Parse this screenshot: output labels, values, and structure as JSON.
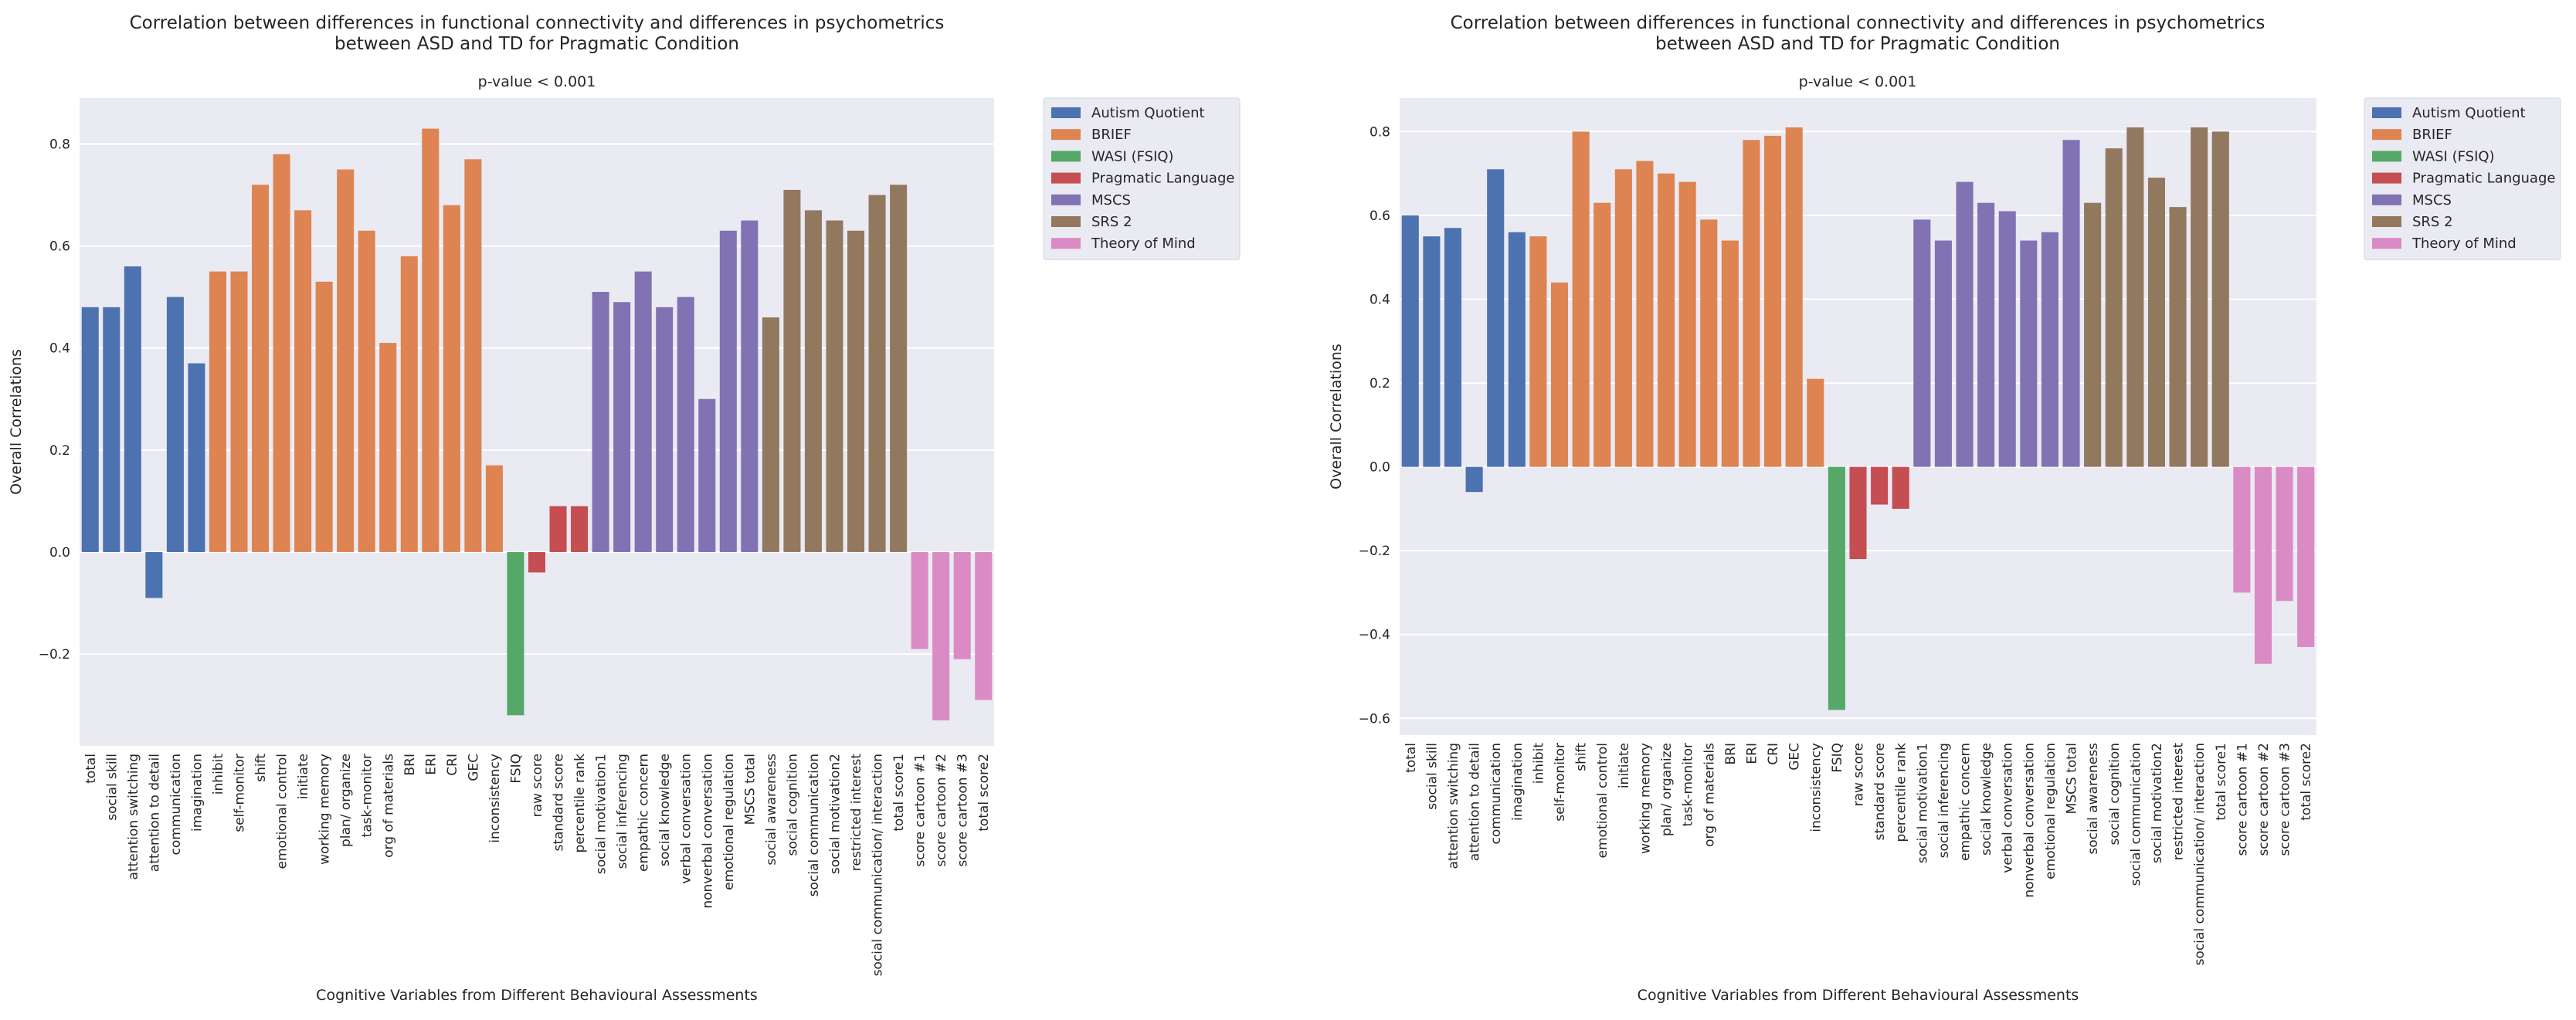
{
  "chart_data": [
    {
      "type": "bar",
      "title": "Correlation between differences in functional connectivity and differences in psychometrics\nbetween ASD and TD for Pragmatic Condition",
      "subtitle": "p-value < 0.001",
      "xlabel": "Cognitive Variables from Different Behavioural Assessments",
      "ylabel": "Overall Correlations",
      "ylim": [
        -0.38,
        0.89
      ],
      "yticks": [
        -0.2,
        0.0,
        0.2,
        0.4,
        0.6,
        0.8
      ],
      "ytick_labels": [
        "−0.2",
        "0.0",
        "0.2",
        "0.4",
        "0.6",
        "0.8"
      ],
      "grid": true,
      "legend_position": "outside-top-right",
      "groups": [
        {
          "name": "Autism Quotient",
          "color": "#4C72B0"
        },
        {
          "name": "BRIEF",
          "color": "#DD8452"
        },
        {
          "name": "WASI (FSIQ)",
          "color": "#55A868"
        },
        {
          "name": "Pragmatic Language",
          "color": "#C44E52"
        },
        {
          "name": "MSCS",
          "color": "#8172B3"
        },
        {
          "name": "SRS 2",
          "color": "#937860"
        },
        {
          "name": "Theory of Mind",
          "color": "#DA8BC3"
        }
      ],
      "categories": [
        "total",
        "social skill",
        "attention switching",
        "attention to detail",
        "communication",
        "imagination",
        "inhibit",
        "self-monitor",
        "shift",
        "emotional control",
        "initiate",
        "working memory",
        "plan/ organize",
        "task-monitor",
        "org of materials",
        "BRI",
        "ERI",
        "CRI",
        "GEC",
        "inconsistency",
        "FSIQ",
        "raw score",
        "standard score",
        "percentile rank",
        "social motivation1",
        "social inferencing",
        "empathic concern",
        "social knowledge",
        "verbal conversation",
        "nonverbal conversation",
        "emotional regulation",
        "MSCS total",
        "social awareness",
        "social cognition",
        "social communication",
        "social motivation2",
        "restricted interest",
        "social communication/ interaction",
        "total score1",
        "score cartoon #1",
        "score cartoon #2",
        "score cartoon #3",
        "total score2"
      ],
      "category_groups": [
        0,
        0,
        0,
        0,
        0,
        0,
        1,
        1,
        1,
        1,
        1,
        1,
        1,
        1,
        1,
        1,
        1,
        1,
        1,
        1,
        2,
        3,
        3,
        3,
        4,
        4,
        4,
        4,
        4,
        4,
        4,
        4,
        5,
        5,
        5,
        5,
        5,
        5,
        5,
        6,
        6,
        6,
        6
      ],
      "values": [
        0.48,
        0.48,
        0.56,
        -0.09,
        0.5,
        0.37,
        0.55,
        0.55,
        0.72,
        0.78,
        0.67,
        0.53,
        0.75,
        0.63,
        0.41,
        0.58,
        0.83,
        0.68,
        0.77,
        0.17,
        -0.32,
        -0.04,
        0.09,
        0.09,
        0.51,
        0.49,
        0.55,
        0.48,
        0.5,
        0.3,
        0.63,
        0.65,
        0.46,
        0.71,
        0.67,
        0.65,
        0.63,
        0.7,
        0.72,
        -0.19,
        -0.33,
        -0.21,
        -0.29
      ]
    },
    {
      "type": "bar",
      "title": "Correlation between differences in functional connectivity and differences in psychometrics\nbetween ASD and TD for Pragmatic Condition",
      "subtitle": "p-value < 0.001",
      "xlabel": "Cognitive Variables from Different Behavioural Assessments",
      "ylabel": "Overall Correlations",
      "ylim": [
        -0.64,
        0.88
      ],
      "yticks": [
        -0.6,
        -0.4,
        -0.2,
        0.0,
        0.2,
        0.4,
        0.6,
        0.8
      ],
      "ytick_labels": [
        "−0.6",
        "−0.4",
        "−0.2",
        "0.0",
        "0.2",
        "0.4",
        "0.6",
        "0.8"
      ],
      "grid": true,
      "legend_position": "outside-top-right",
      "groups": [
        {
          "name": "Autism Quotient",
          "color": "#4C72B0"
        },
        {
          "name": "BRIEF",
          "color": "#DD8452"
        },
        {
          "name": "WASI (FSIQ)",
          "color": "#55A868"
        },
        {
          "name": "Pragmatic Language",
          "color": "#C44E52"
        },
        {
          "name": "MSCS",
          "color": "#8172B3"
        },
        {
          "name": "SRS 2",
          "color": "#937860"
        },
        {
          "name": "Theory of Mind",
          "color": "#DA8BC3"
        }
      ],
      "categories": [
        "total",
        "social skill",
        "attention switching",
        "attention to detail",
        "communication",
        "imagination",
        "inhibit",
        "self-monitor",
        "shift",
        "emotional control",
        "initiate",
        "working memory",
        "plan/ organize",
        "task-monitor",
        "org of materials",
        "BRI",
        "ERI",
        "CRI",
        "GEC",
        "inconsistency",
        "FSIQ",
        "raw score",
        "standard score",
        "percentile rank",
        "social motivation1",
        "social inferencing",
        "empathic concern",
        "social knowledge",
        "verbal conversation",
        "nonverbal conversation",
        "emotional regulation",
        "MSCS total",
        "social awareness",
        "social cognition",
        "social communication",
        "social motivation2",
        "restricted interest",
        "social communication/ interaction",
        "total score1",
        "score cartoon #1",
        "score cartoon #2",
        "score cartoon #3",
        "total score2"
      ],
      "category_groups": [
        0,
        0,
        0,
        0,
        0,
        0,
        1,
        1,
        1,
        1,
        1,
        1,
        1,
        1,
        1,
        1,
        1,
        1,
        1,
        1,
        2,
        3,
        3,
        3,
        4,
        4,
        4,
        4,
        4,
        4,
        4,
        4,
        5,
        5,
        5,
        5,
        5,
        5,
        5,
        6,
        6,
        6,
        6
      ],
      "values": [
        0.6,
        0.55,
        0.57,
        -0.06,
        0.71,
        0.56,
        0.55,
        0.44,
        0.8,
        0.63,
        0.71,
        0.73,
        0.7,
        0.68,
        0.59,
        0.54,
        0.78,
        0.79,
        0.81,
        0.21,
        -0.58,
        -0.22,
        -0.09,
        -0.1,
        0.59,
        0.54,
        0.68,
        0.63,
        0.61,
        0.54,
        0.56,
        0.78,
        0.63,
        0.76,
        0.81,
        0.69,
        0.62,
        0.81,
        0.8,
        -0.3,
        -0.47,
        -0.32,
        -0.43
      ]
    }
  ]
}
